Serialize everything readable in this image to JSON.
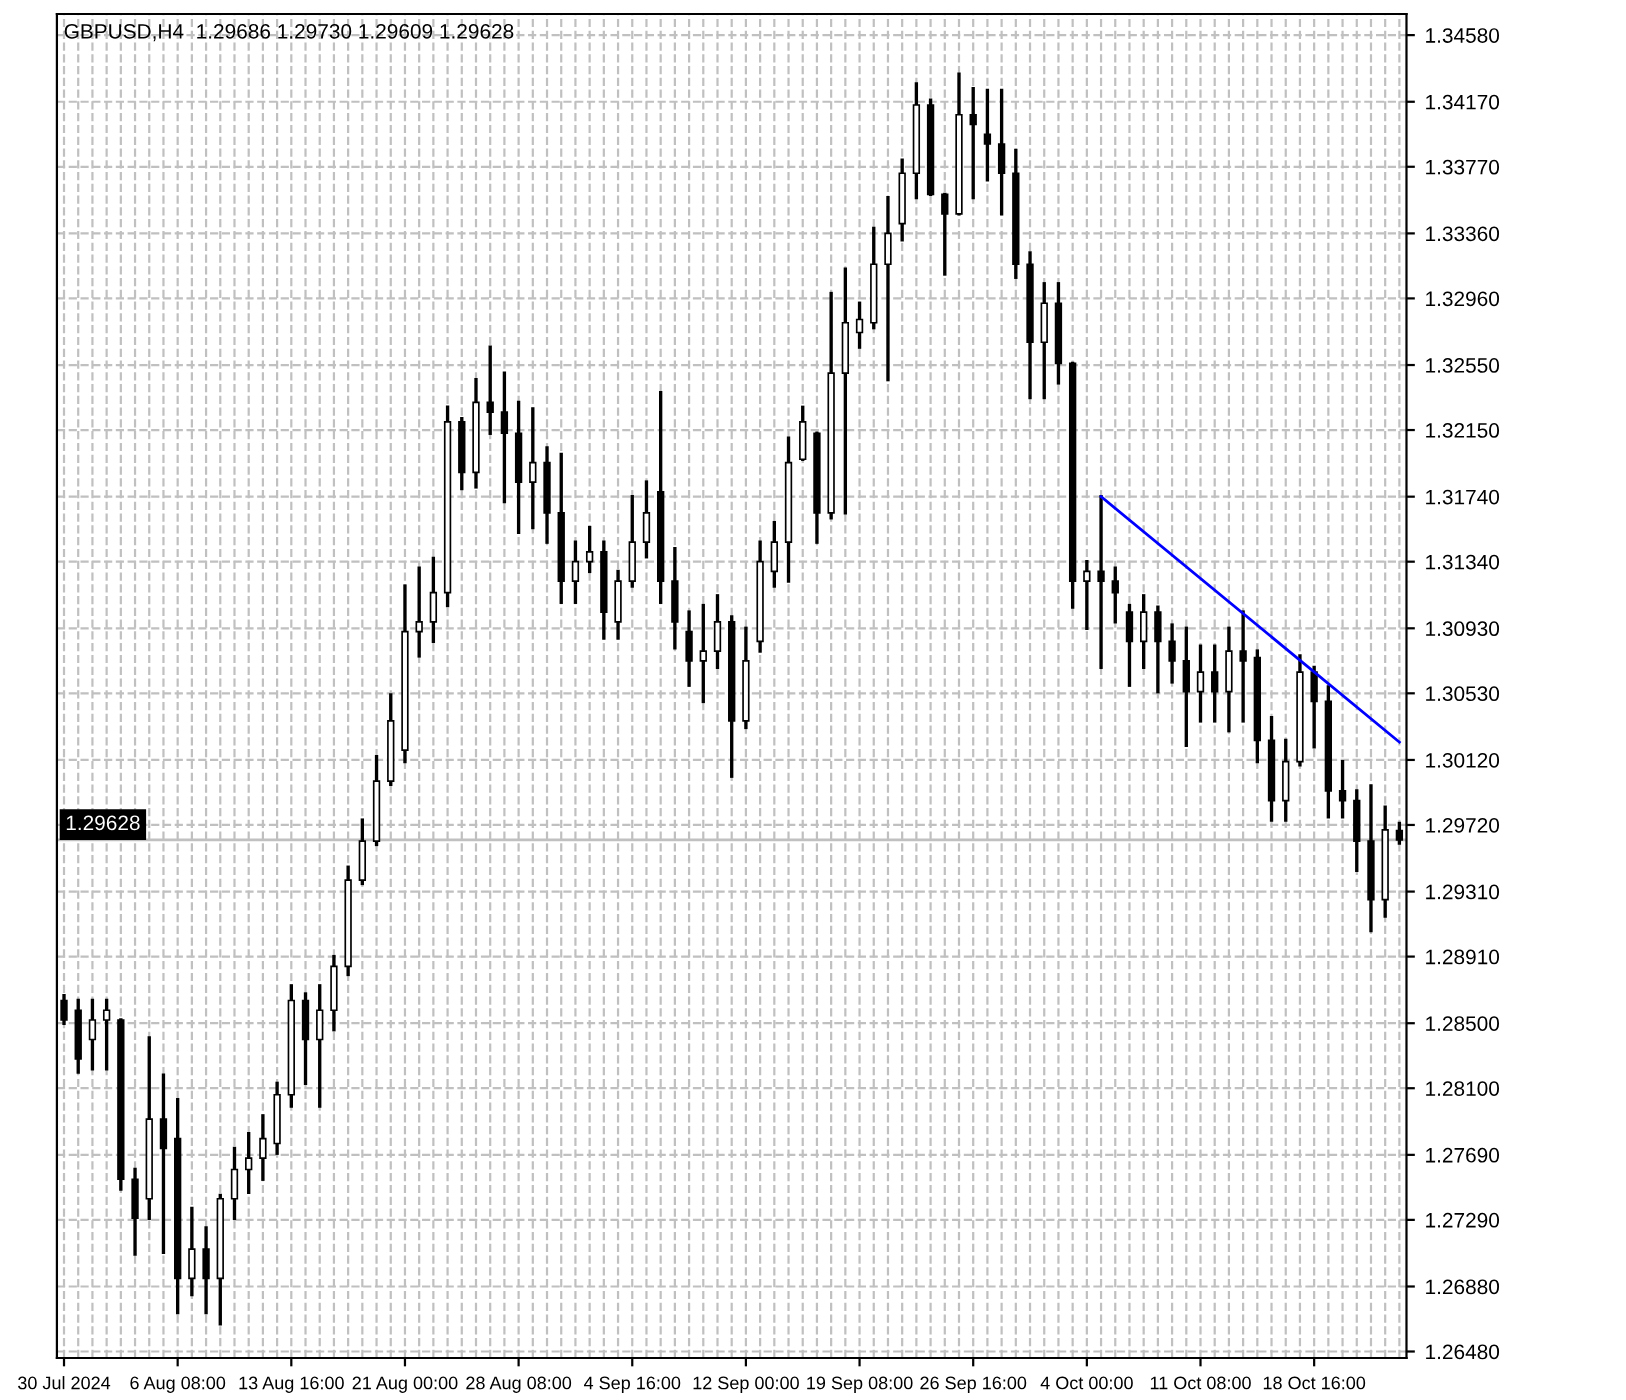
{
  "chart_data": {
    "type": "candlestick",
    "title": "GBPUSD,H4  1.29686 1.29730 1.29609 1.29628",
    "categories": [
      "30 Jul 2024",
      null,
      null,
      null,
      null,
      null,
      null,
      null,
      "6 Aug 08:00",
      null,
      null,
      null,
      null,
      null,
      null,
      null,
      "13 Aug 16:00",
      null,
      null,
      null,
      null,
      null,
      null,
      null,
      "21 Aug 00:00",
      null,
      null,
      null,
      null,
      null,
      null,
      null,
      "28 Aug 08:00",
      null,
      null,
      null,
      null,
      null,
      null,
      null,
      "4 Sep 16:00",
      null,
      null,
      null,
      null,
      null,
      null,
      null,
      "12 Sep 00:00",
      null,
      null,
      null,
      null,
      null,
      null,
      null,
      "19 Sep 08:00",
      null,
      null,
      null,
      null,
      null,
      null,
      null,
      "26 Sep 16:00",
      null,
      null,
      null,
      null,
      null,
      null,
      null,
      "4 Oct 00:00",
      null,
      null,
      null,
      null,
      null,
      null,
      null,
      "11 Oct 08:00",
      null,
      null,
      null,
      null,
      null,
      null,
      null,
      "18 Oct 16:00",
      null,
      null,
      null,
      null,
      null,
      null
    ],
    "color": "#000000",
    "ohlc": [
      [
        1.2864,
        1.2867,
        1.285,
        1.2852
      ],
      [
        1.2858,
        1.2864,
        1.282,
        1.2828
      ],
      [
        1.284,
        1.2864,
        1.2822,
        1.2852
      ],
      [
        1.2852,
        1.2864,
        1.2822,
        1.2858
      ],
      [
        1.2852,
        1.2852,
        1.2748,
        1.2754
      ],
      [
        1.2754,
        1.276,
        1.2708,
        1.273
      ],
      [
        1.2742,
        1.2841,
        1.273,
        1.2791
      ],
      [
        1.2791,
        1.2818,
        1.2709,
        1.2773
      ],
      [
        1.2779,
        1.2803,
        1.2672,
        1.2693
      ],
      [
        1.2693,
        1.2736,
        1.2683,
        1.2711
      ],
      [
        1.2711,
        1.2724,
        1.2672,
        1.2693
      ],
      [
        1.2693,
        1.2744,
        1.2665,
        1.2742
      ],
      [
        1.2742,
        1.2773,
        1.273,
        1.276
      ],
      [
        1.276,
        1.2782,
        1.2746,
        1.2767
      ],
      [
        1.2767,
        1.2793,
        1.2754,
        1.2779
      ],
      [
        1.2776,
        1.2813,
        1.277,
        1.2806
      ],
      [
        1.2806,
        1.2873,
        1.2799,
        1.2864
      ],
      [
        1.2864,
        1.2868,
        1.2813,
        1.284
      ],
      [
        1.284,
        1.2873,
        1.2799,
        1.2858
      ],
      [
        1.2858,
        1.2891,
        1.2846,
        1.2885
      ],
      [
        1.2885,
        1.2946,
        1.288,
        1.2938
      ],
      [
        1.2938,
        1.2975,
        1.2936,
        1.2962
      ],
      [
        1.2962,
        1.3014,
        1.296,
        1.2999
      ],
      [
        1.2999,
        1.3052,
        1.2997,
        1.3036
      ],
      [
        1.3018,
        1.3119,
        1.3011,
        1.3091
      ],
      [
        1.3091,
        1.313,
        1.3076,
        1.3097
      ],
      [
        1.3097,
        1.3136,
        1.3085,
        1.3115
      ],
      [
        1.3115,
        1.3229,
        1.3107,
        1.322
      ],
      [
        1.322,
        1.3222,
        1.3179,
        1.3189
      ],
      [
        1.3189,
        1.3246,
        1.318,
        1.3232
      ],
      [
        1.3232,
        1.3266,
        1.3213,
        1.3226
      ],
      [
        1.3226,
        1.325,
        1.3171,
        1.3213
      ],
      [
        1.3213,
        1.3232,
        1.3152,
        1.3183
      ],
      [
        1.3183,
        1.3228,
        1.3155,
        1.3195
      ],
      [
        1.3195,
        1.3204,
        1.3146,
        1.3164
      ],
      [
        1.3164,
        1.32,
        1.3109,
        1.3122
      ],
      [
        1.3122,
        1.3146,
        1.3109,
        1.3134
      ],
      [
        1.3134,
        1.3155,
        1.3128,
        1.314
      ],
      [
        1.314,
        1.3146,
        1.3087,
        1.3103
      ],
      [
        1.3097,
        1.3128,
        1.3087,
        1.3122
      ],
      [
        1.3122,
        1.3174,
        1.3119,
        1.3146
      ],
      [
        1.3146,
        1.3183,
        1.3137,
        1.3164
      ],
      [
        1.3177,
        1.3238,
        1.3109,
        1.3122
      ],
      [
        1.3122,
        1.3142,
        1.3081,
        1.3097
      ],
      [
        1.3091,
        1.3103,
        1.3058,
        1.3073
      ],
      [
        1.3073,
        1.3107,
        1.3048,
        1.3079
      ],
      [
        1.3079,
        1.3113,
        1.3069,
        1.3097
      ],
      [
        1.3097,
        1.31,
        1.3002,
        1.3036
      ],
      [
        1.3036,
        1.3093,
        1.3032,
        1.3073
      ],
      [
        1.3085,
        1.3146,
        1.3079,
        1.3134
      ],
      [
        1.3128,
        1.3158,
        1.3119,
        1.3146
      ],
      [
        1.3146,
        1.321,
        1.3122,
        1.3195
      ],
      [
        1.3197,
        1.3229,
        1.3197,
        1.322
      ],
      [
        1.3213,
        1.3213,
        1.3146,
        1.3164
      ],
      [
        1.3164,
        1.3299,
        1.3161,
        1.325
      ],
      [
        1.325,
        1.3314,
        1.3164,
        1.3281
      ],
      [
        1.3275,
        1.3293,
        1.3266,
        1.3283
      ],
      [
        1.3281,
        1.3339,
        1.3278,
        1.3317
      ],
      [
        1.3317,
        1.3358,
        1.3246,
        1.3336
      ],
      [
        1.3342,
        1.3381,
        1.3332,
        1.3373
      ],
      [
        1.3373,
        1.3428,
        1.3358,
        1.3415
      ],
      [
        1.3415,
        1.3418,
        1.336,
        1.336
      ],
      [
        1.336,
        1.336,
        1.3311,
        1.3348
      ],
      [
        1.3348,
        1.3434,
        1.3348,
        1.3409
      ],
      [
        1.3409,
        1.3425,
        1.3358,
        1.3403
      ],
      [
        1.3397,
        1.3424,
        1.3369,
        1.3391
      ],
      [
        1.3391,
        1.3424,
        1.3348,
        1.3373
      ],
      [
        1.3373,
        1.3387,
        1.3309,
        1.3317
      ],
      [
        1.3317,
        1.3324,
        1.3235,
        1.3269
      ],
      [
        1.3269,
        1.3305,
        1.3235,
        1.3293
      ],
      [
        1.3293,
        1.3305,
        1.3244,
        1.3256
      ],
      [
        1.3256,
        1.3256,
        1.3106,
        1.3122
      ],
      [
        1.3122,
        1.3134,
        1.3093,
        1.3128
      ],
      [
        1.3128,
        1.3174,
        1.3069,
        1.3122
      ],
      [
        1.3122,
        1.313,
        1.3097,
        1.3115
      ],
      [
        1.3103,
        1.3107,
        1.3058,
        1.3085
      ],
      [
        1.3085,
        1.3113,
        1.3069,
        1.3103
      ],
      [
        1.3103,
        1.3106,
        1.3054,
        1.3085
      ],
      [
        1.3085,
        1.3095,
        1.306,
        1.3073
      ],
      [
        1.3073,
        1.3093,
        1.3021,
        1.3054
      ],
      [
        1.3054,
        1.3082,
        1.3036,
        1.3066
      ],
      [
        1.3066,
        1.3082,
        1.3036,
        1.3054
      ],
      [
        1.3054,
        1.3093,
        1.303,
        1.3079
      ],
      [
        1.3079,
        1.3103,
        1.3036,
        1.3073
      ],
      [
        1.3075,
        1.3079,
        1.3011,
        1.3024
      ],
      [
        1.3024,
        1.3038,
        1.2975,
        1.2987
      ],
      [
        1.2987,
        1.3024,
        1.2975,
        1.3011
      ],
      [
        1.3011,
        1.3076,
        1.3009,
        1.3066
      ],
      [
        1.3066,
        1.3069,
        1.302,
        1.3048
      ],
      [
        1.3048,
        1.3057,
        1.2977,
        1.2993
      ],
      [
        1.2993,
        1.3011,
        1.2977,
        1.2987
      ],
      [
        1.2987,
        1.2993,
        1.2944,
        1.2962
      ],
      [
        1.2962,
        1.2996,
        1.2907,
        1.2926
      ],
      [
        1.2926,
        1.2983,
        1.2916,
        1.2969
      ],
      [
        1.29686,
        1.2973,
        1.29609,
        1.29628
      ]
    ],
    "series": [
      {
        "type": "line",
        "color": "#0000ff",
        "values": [
          null,
          null,
          null,
          null,
          null,
          null,
          null,
          null,
          null,
          null,
          null,
          null,
          null,
          null,
          null,
          null,
          null,
          null,
          null,
          null,
          null,
          null,
          null,
          null,
          null,
          null,
          null,
          null,
          null,
          null,
          null,
          null,
          null,
          null,
          null,
          null,
          null,
          null,
          null,
          null,
          null,
          null,
          null,
          null,
          null,
          null,
          null,
          null,
          null,
          null,
          null,
          null,
          null,
          null,
          null,
          null,
          null,
          null,
          null,
          null,
          null,
          null,
          null,
          null,
          null,
          null,
          null,
          null,
          null,
          null,
          null,
          null,
          null,
          1.3174,
          null,
          null,
          null,
          null,
          null,
          null,
          null,
          null,
          null,
          null,
          null,
          null,
          null,
          null,
          null,
          null,
          null,
          null,
          null,
          null,
          1.3023
        ]
      }
    ],
    "ylim": [
      1.2644,
      1.3471
    ],
    "yticks": [
      {
        "value": 1.3458,
        "label": "1.34580"
      },
      {
        "value": 1.3417,
        "label": "1.34170"
      },
      {
        "value": 1.3377,
        "label": "1.33770"
      },
      {
        "value": 1.3336,
        "label": "1.33360"
      },
      {
        "value": 1.3296,
        "label": "1.32960"
      },
      {
        "value": 1.3255,
        "label": "1.32550"
      },
      {
        "value": 1.3215,
        "label": "1.32150"
      },
      {
        "value": 1.3174,
        "label": "1.31740"
      },
      {
        "value": 1.3134,
        "label": "1.31340"
      },
      {
        "value": 1.3093,
        "label": "1.30930"
      },
      {
        "value": 1.3053,
        "label": "1.30530"
      },
      {
        "value": 1.3012,
        "label": "1.30120"
      },
      {
        "value": 1.2972,
        "label": "1.29720"
      },
      {
        "value": 1.2931,
        "label": "1.29310"
      },
      {
        "value": 1.2891,
        "label": "1.28910"
      },
      {
        "value": 1.285,
        "label": "1.28500"
      },
      {
        "value": 1.281,
        "label": "1.28100"
      },
      {
        "value": 1.2769,
        "label": "1.27690"
      },
      {
        "value": 1.2729,
        "label": "1.27290"
      },
      {
        "value": 1.2688,
        "label": "1.26880"
      },
      {
        "value": 1.2648,
        "label": "1.26480"
      }
    ],
    "ref_lines": [
      {
        "axis": "y",
        "value": 1.29628,
        "label": "1.29628",
        "color": "#c0c0c0"
      }
    ],
    "grid": true
  }
}
